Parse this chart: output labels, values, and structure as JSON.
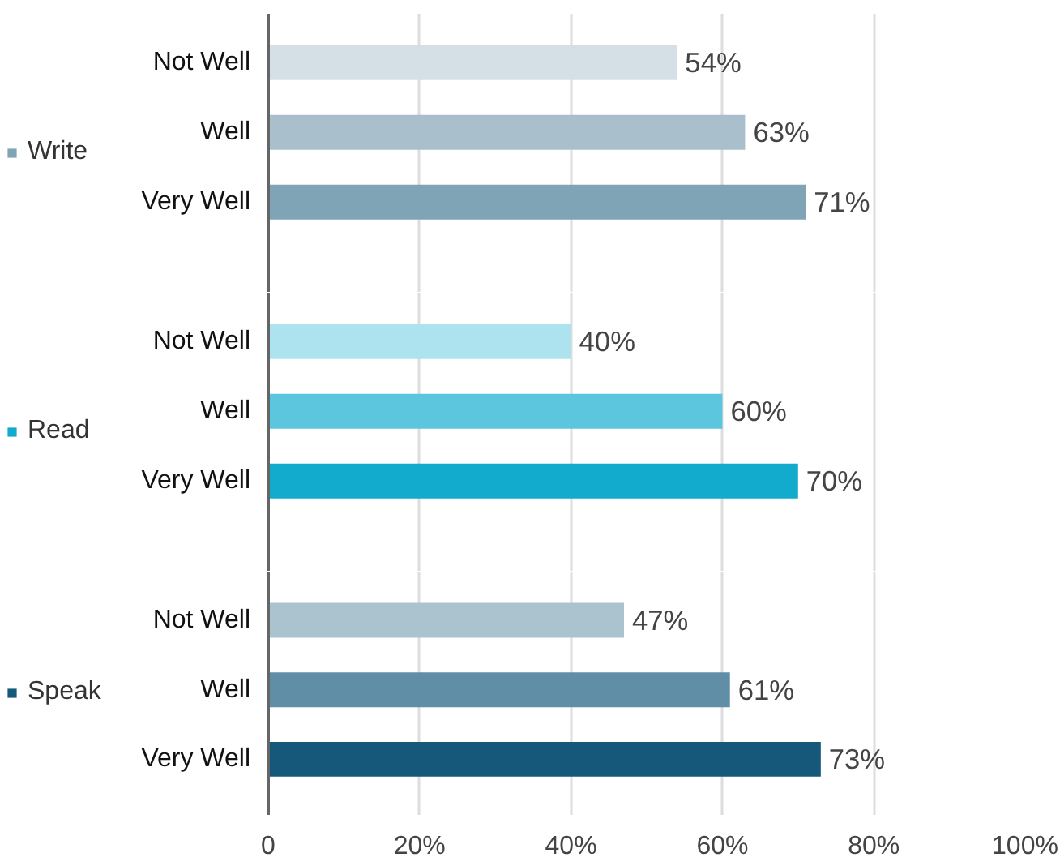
{
  "chart_data": [
    {
      "type": "bar",
      "orientation": "horizontal",
      "categories": [
        "Not Well",
        "Well",
        "Very Well"
      ],
      "series": [
        {
          "name": "Write",
          "color": "#7fa4b5",
          "colors": [
            "#d4e0e6",
            "#a9c0cc",
            "#7fa4b5"
          ],
          "values": [
            54,
            63,
            71
          ],
          "value_labels": [
            "54%",
            "63%",
            "71%"
          ]
        }
      ],
      "xlim": [
        0,
        100
      ],
      "xticks": [
        0,
        20,
        40,
        60,
        80,
        100
      ],
      "grid": "x",
      "legend": "left",
      "tick_labels": "y"
    },
    {
      "type": "bar",
      "orientation": "horizontal",
      "categories": [
        "Not Well",
        "Well",
        "Very Well"
      ],
      "series": [
        {
          "name": "Read",
          "color": "#12abcd",
          "colors": [
            "#ace3ef",
            "#5bc6de",
            "#12abcd"
          ],
          "values": [
            40,
            60,
            70
          ],
          "value_labels": [
            "40%",
            "60%",
            "70%"
          ]
        }
      ],
      "xlim": [
        0,
        100
      ],
      "xticks": [
        0,
        20,
        40,
        60,
        80,
        100
      ],
      "grid": "x",
      "legend": "left",
      "tick_labels": "y"
    },
    {
      "type": "bar",
      "orientation": "horizontal",
      "categories": [
        "Not Well",
        "Well",
        "Very Well"
      ],
      "series": [
        {
          "name": "Speak",
          "color": "#16587a",
          "colors": [
            "#abc3cf",
            "#5f8ea6",
            "#16587a"
          ],
          "values": [
            47,
            61,
            73
          ],
          "value_labels": [
            "47%",
            "61%",
            "73%"
          ]
        }
      ],
      "xlim": [
        0,
        100
      ],
      "xticks": [
        {
          "value": 0,
          "label": "0"
        },
        {
          "value": 20,
          "label": "20%"
        },
        {
          "value": 40,
          "label": "40%"
        },
        {
          "value": 60,
          "label": "60%"
        },
        {
          "value": 80,
          "label": "80%"
        },
        {
          "value": 100,
          "label": "100%"
        }
      ],
      "grid": "x",
      "legend": "left"
    }
  ]
}
